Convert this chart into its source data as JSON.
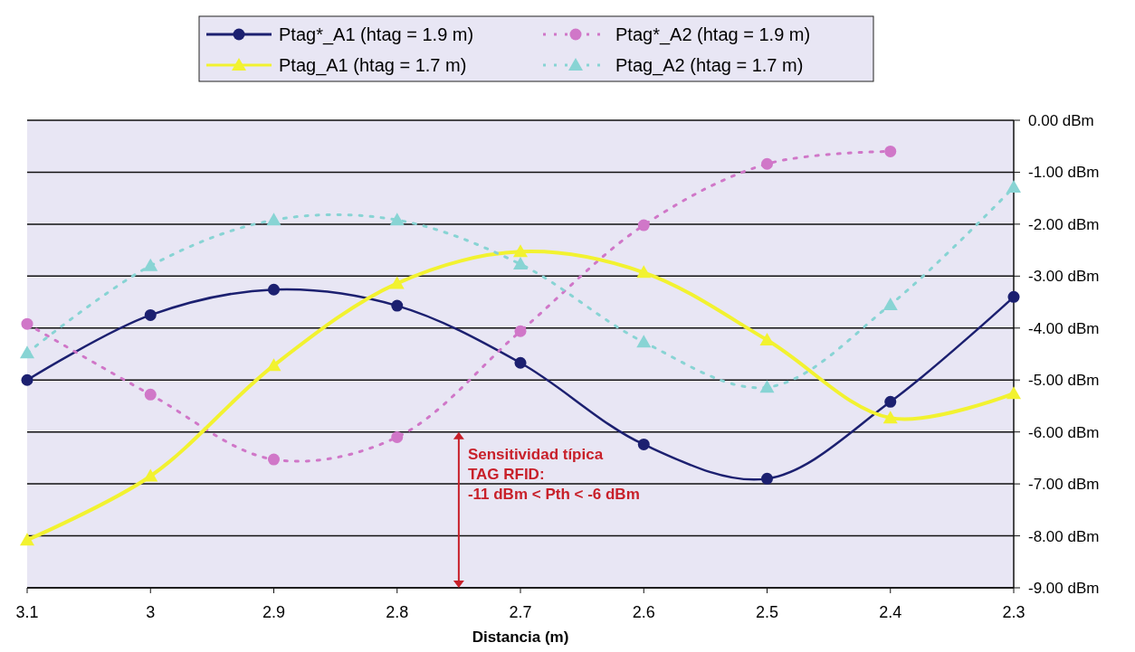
{
  "chart_data": {
    "type": "line",
    "xlabel": "Distancia (m)",
    "x": [
      3.1,
      3.0,
      2.9,
      2.8,
      2.7,
      2.6,
      2.5,
      2.4,
      2.3
    ],
    "xlim": [
      3.1,
      2.3
    ],
    "xticks": [
      3.1,
      3,
      2.9,
      2.8,
      2.7,
      2.6,
      2.5,
      2.4,
      2.3
    ],
    "ylim": [
      -9,
      0
    ],
    "yticks": [
      {
        "value": 0,
        "label": "0.00 dBm"
      },
      {
        "value": -1,
        "label": "-1.00 dBm"
      },
      {
        "value": -2,
        "label": "-2.00 dBm"
      },
      {
        "value": -3,
        "label": "-3.00 dBm"
      },
      {
        "value": -4,
        "label": "-4.00 dBm"
      },
      {
        "value": -5,
        "label": "-5.00 dBm"
      },
      {
        "value": -6,
        "label": "-6.00 dBm"
      },
      {
        "value": -7,
        "label": "-7.00 dBm"
      },
      {
        "value": -8,
        "label": "-8.00 dBm"
      },
      {
        "value": -9,
        "label": "-9.00 dBm"
      }
    ],
    "grid": "y",
    "legend": "top",
    "series": [
      {
        "name": "Ptag*_A1 (htag = 1.9 m)",
        "color": "#1c2070",
        "marker": "circle",
        "line_style": "solid",
        "values": [
          -5.0,
          -3.75,
          -3.26,
          -3.57,
          -4.67,
          -6.24,
          -6.9,
          -5.42,
          -3.4
        ]
      },
      {
        "name": "Ptag*_A2 (htag = 1.9 m)",
        "color": "#d077c8",
        "marker": "circle",
        "line_style": "dotted",
        "values": [
          -3.92,
          -5.28,
          -6.53,
          -6.1,
          -4.06,
          -2.02,
          -0.84,
          -0.6,
          null
        ]
      },
      {
        "name": "Ptag_A1 (htag = 1.7 m)",
        "color": "#f2f230",
        "marker": "triangle",
        "line_style": "solid",
        "values": [
          -8.08,
          -6.85,
          -4.72,
          -3.14,
          -2.53,
          -2.93,
          -4.23,
          -5.73,
          -5.26
        ]
      },
      {
        "name": "Ptag_A2 (htag = 1.7 m)",
        "color": "#88d4d4",
        "marker": "triangle",
        "line_style": "dotted",
        "values": [
          -4.48,
          -2.8,
          -1.92,
          -1.92,
          -2.77,
          -4.27,
          -5.14,
          -3.55,
          -1.29
        ]
      }
    ],
    "annotations": [
      "Sensitividad típica\nTAG RFID:\n-11 dBm < Pth < -6 dBm"
    ]
  }
}
